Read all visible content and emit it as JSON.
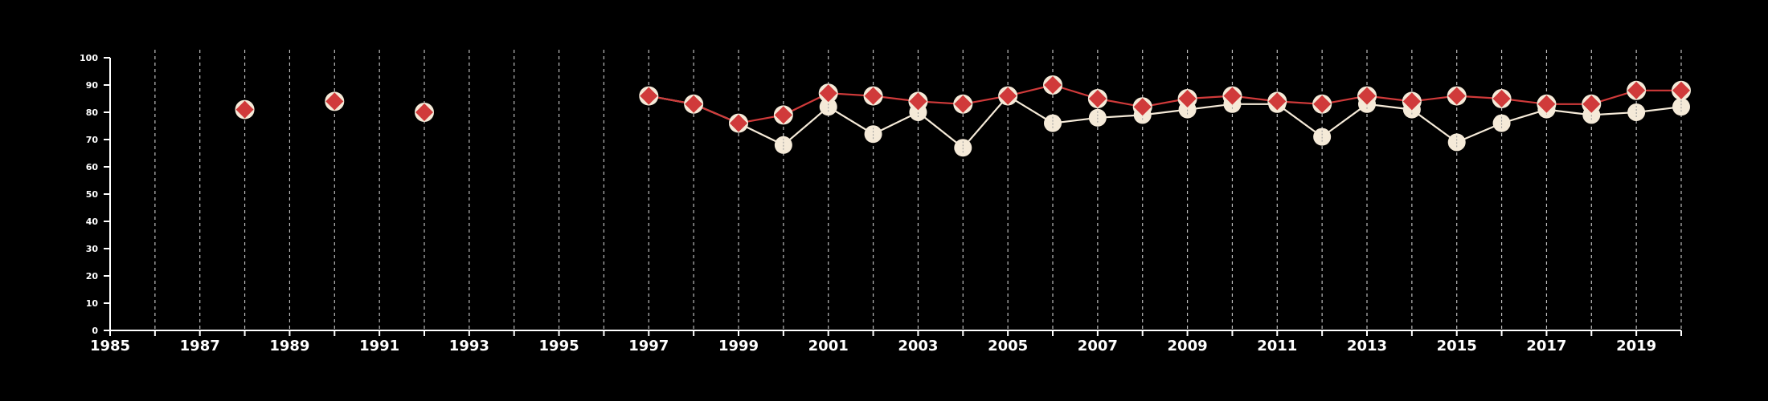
{
  "chart_data": {
    "type": "line",
    "title": "",
    "xlabel": "",
    "ylabel": "",
    "xlim": [
      1985,
      2020
    ],
    "ylim": [
      0,
      100
    ],
    "x_ticks": [
      "1985",
      "1987",
      "1989",
      "1991",
      "1993",
      "1995",
      "1997",
      "1999",
      "2001",
      "2003",
      "2005",
      "2007",
      "2009",
      "2011",
      "2013",
      "2015",
      "2017",
      "2019"
    ],
    "y_ticks": [
      "0",
      "10",
      "20",
      "30",
      "40",
      "50",
      "60",
      "70",
      "80",
      "90",
      "100"
    ],
    "vertical_gridlines": "dashed, every year",
    "series": [
      {
        "marker": "circle",
        "color": "#f5ead8",
        "points": [
          [
            1997,
            86
          ],
          [
            1998,
            83
          ],
          [
            1999,
            76
          ],
          [
            2000,
            68
          ],
          [
            2001,
            82
          ],
          [
            2002,
            72
          ],
          [
            2003,
            80
          ],
          [
            2004,
            67
          ],
          [
            2005,
            86
          ],
          [
            2006,
            76
          ],
          [
            2007,
            78
          ],
          [
            2008,
            79
          ],
          [
            2009,
            81
          ],
          [
            2010,
            83
          ],
          [
            2011,
            83
          ],
          [
            2012,
            71
          ],
          [
            2013,
            83
          ],
          [
            2014,
            81
          ],
          [
            2015,
            69
          ],
          [
            2016,
            76
          ],
          [
            2017,
            81
          ],
          [
            2018,
            79
          ],
          [
            2019,
            80
          ],
          [
            2020,
            82
          ]
        ]
      },
      {
        "marker": "diamond",
        "color": "#d03a3a",
        "points": [
          [
            1988,
            81
          ],
          [
            1990,
            84
          ],
          [
            1992,
            80
          ],
          [
            1997,
            86
          ],
          [
            1998,
            83
          ],
          [
            1999,
            76
          ],
          [
            2000,
            79
          ],
          [
            2001,
            87
          ],
          [
            2002,
            86
          ],
          [
            2003,
            84
          ],
          [
            2004,
            83
          ],
          [
            2005,
            86
          ],
          [
            2006,
            90
          ],
          [
            2007,
            85
          ],
          [
            2008,
            82
          ],
          [
            2009,
            85
          ],
          [
            2010,
            86
          ],
          [
            2011,
            84
          ],
          [
            2012,
            83
          ],
          [
            2013,
            86
          ],
          [
            2014,
            84
          ],
          [
            2015,
            86
          ],
          [
            2016,
            85
          ],
          [
            2017,
            83
          ],
          [
            2018,
            83
          ],
          [
            2019,
            88
          ],
          [
            2020,
            88
          ]
        ]
      }
    ]
  }
}
